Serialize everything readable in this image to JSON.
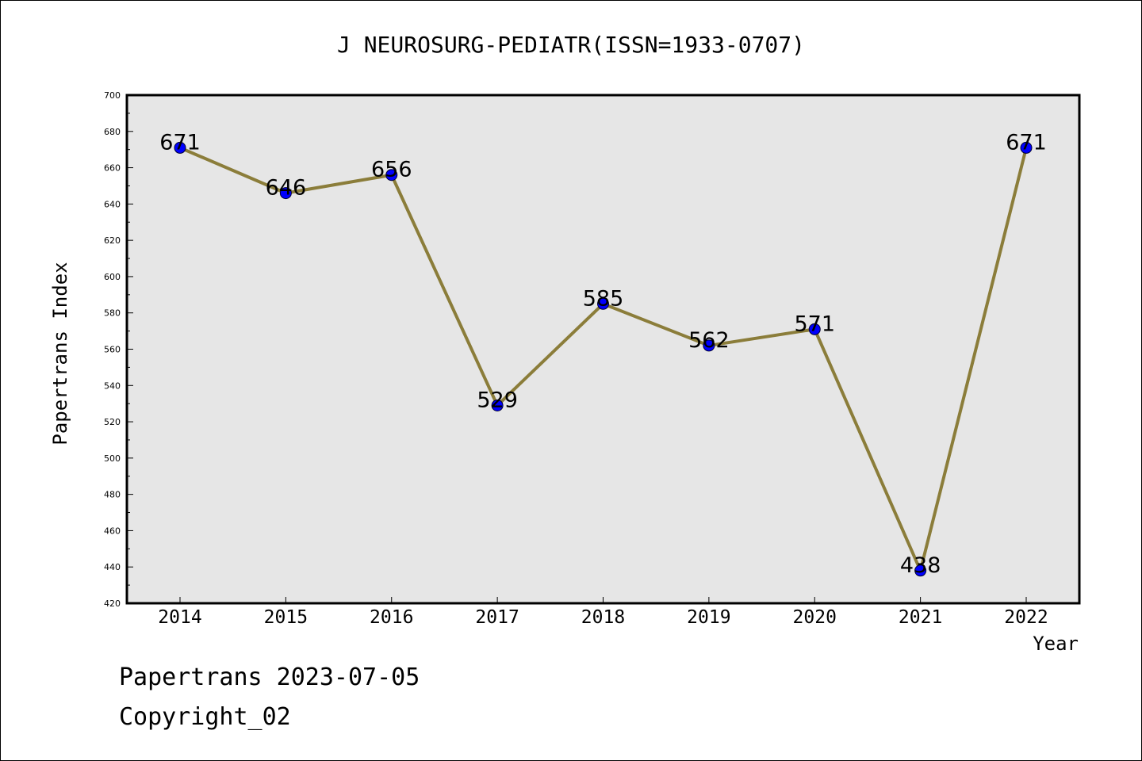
{
  "chart_data": {
    "type": "line",
    "title": "J NEUROSURG-PEDIATR(ISSN=1933-0707)",
    "xlabel": "Year",
    "ylabel": "Papertrans Index",
    "categories": [
      "2014",
      "2015",
      "2016",
      "2017",
      "2018",
      "2019",
      "2020",
      "2021",
      "2022"
    ],
    "values": [
      671,
      646,
      656,
      529,
      585,
      562,
      571,
      438,
      671
    ],
    "ylim": [
      420,
      700
    ],
    "yticks": [
      420,
      440,
      460,
      480,
      500,
      520,
      540,
      560,
      580,
      600,
      620,
      640,
      660,
      680,
      700
    ],
    "grid": false,
    "line_color": "#8B7D3A",
    "marker_color": "#0000FF",
    "plot_background": "#E6E6E6"
  },
  "footer": {
    "line1": "Papertrans 2023-07-05",
    "line2": "Copyright_02"
  }
}
